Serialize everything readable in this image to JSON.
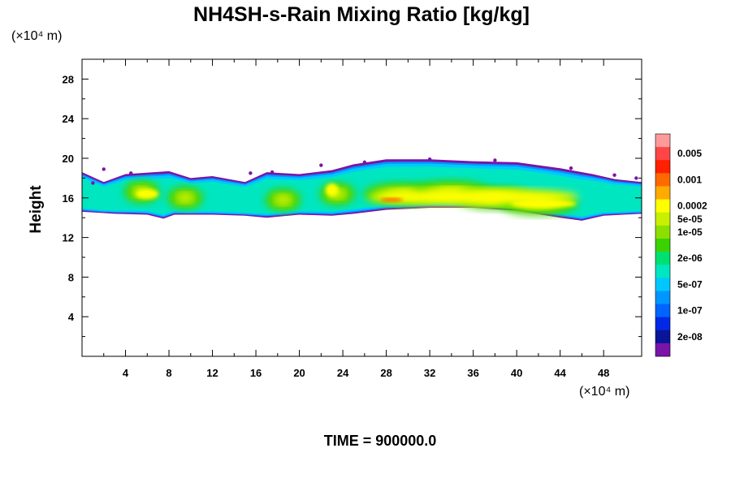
{
  "chart_data": {
    "type": "heatmap",
    "title": "NH4SH-s-Rain Mixing Ratio [kg/kg]",
    "xlabel": "",
    "ylabel": "Height",
    "x_unit": "(×10⁴ m)",
    "y_unit": "(×10⁴ m)",
    "xlim": [
      0,
      51.5
    ],
    "ylim": [
      0,
      30
    ],
    "x_ticks": [
      4,
      8,
      12,
      16,
      20,
      24,
      28,
      32,
      36,
      40,
      44,
      48
    ],
    "y_ticks": [
      4,
      8,
      12,
      16,
      20,
      24,
      28
    ],
    "footer": "TIME = 900000.0",
    "colorbar": {
      "labels": [
        "0.005",
        "0.001",
        "0.0002",
        "5e-05",
        "1e-05",
        "2e-06",
        "5e-07",
        "1e-07",
        "2e-08"
      ],
      "colors_top_to_bottom": [
        "#ff9a9a",
        "#ff4646",
        "#ff2000",
        "#ff6a00",
        "#ffaa00",
        "#ffff00",
        "#c8f000",
        "#8ce000",
        "#3cd200",
        "#00e070",
        "#00e6c0",
        "#00c8ff",
        "#0096ff",
        "#0064ff",
        "#0028e6",
        "#0a1496",
        "#7a14a8"
      ]
    },
    "cloud_band": {
      "base_km_x10e4": [
        [
          0,
          14.6
        ],
        [
          3,
          14.4
        ],
        [
          6,
          14.3
        ],
        [
          7.5,
          13.9
        ],
        [
          8.5,
          14.3
        ],
        [
          12,
          14.3
        ],
        [
          15,
          14.2
        ],
        [
          17,
          14.0
        ],
        [
          20,
          14.3
        ],
        [
          23,
          14.2
        ],
        [
          25,
          14.4
        ],
        [
          28,
          14.8
        ],
        [
          32,
          15.0
        ],
        [
          36,
          15.0
        ],
        [
          40,
          14.7
        ],
        [
          44,
          14.0
        ],
        [
          46,
          13.7
        ],
        [
          48,
          14.2
        ],
        [
          51.5,
          14.4
        ]
      ],
      "top_km_x10e4": [
        [
          0,
          18.6
        ],
        [
          2,
          17.6
        ],
        [
          4,
          18.4
        ],
        [
          8,
          18.7
        ],
        [
          10,
          18.0
        ],
        [
          12,
          18.2
        ],
        [
          15,
          17.6
        ],
        [
          17,
          18.6
        ],
        [
          20,
          18.4
        ],
        [
          23,
          18.8
        ],
        [
          25,
          19.4
        ],
        [
          28,
          19.9
        ],
        [
          32,
          19.9
        ],
        [
          36,
          19.7
        ],
        [
          40,
          19.6
        ],
        [
          44,
          19.0
        ],
        [
          47,
          18.4
        ],
        [
          49,
          17.9
        ],
        [
          51.5,
          17.6
        ]
      ],
      "core_max": "0.0002",
      "cores_x10e4": [
        [
          5.5,
          16.6
        ],
        [
          9.5,
          16.0
        ],
        [
          18.5,
          15.8
        ],
        [
          23.5,
          16.4
        ],
        [
          29.5,
          16.4
        ],
        [
          34,
          16.6
        ],
        [
          38,
          16.0
        ],
        [
          42,
          15.4
        ]
      ]
    }
  }
}
